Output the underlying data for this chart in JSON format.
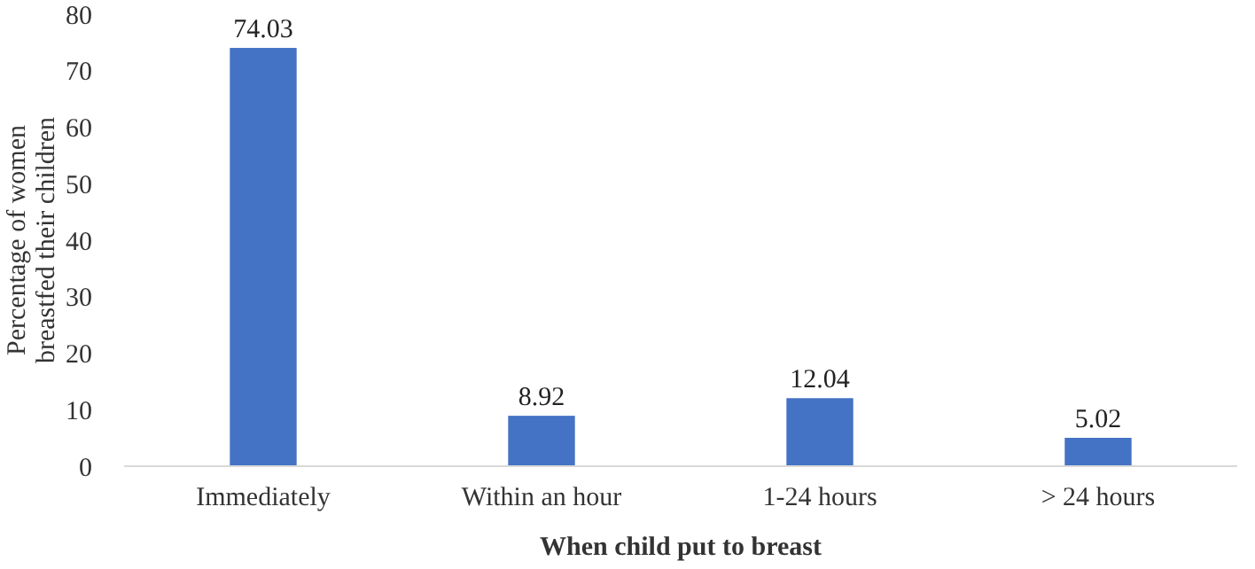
{
  "chart_data": {
    "type": "bar",
    "xlabel": "When child put to breast",
    "ylabel": "Percentage of women breastfed their children",
    "categories": [
      "Immediately",
      "Within an hour",
      "1-24 hours",
      "> 24 hours"
    ],
    "values": [
      74.03,
      8.92,
      12.04,
      5.02
    ],
    "color": "#4472c4",
    "data_labels": true,
    "ylim": [
      0,
      80
    ],
    "yticks": [
      0,
      10,
      20,
      30,
      40,
      50,
      60,
      70,
      80
    ],
    "grid": false
  }
}
